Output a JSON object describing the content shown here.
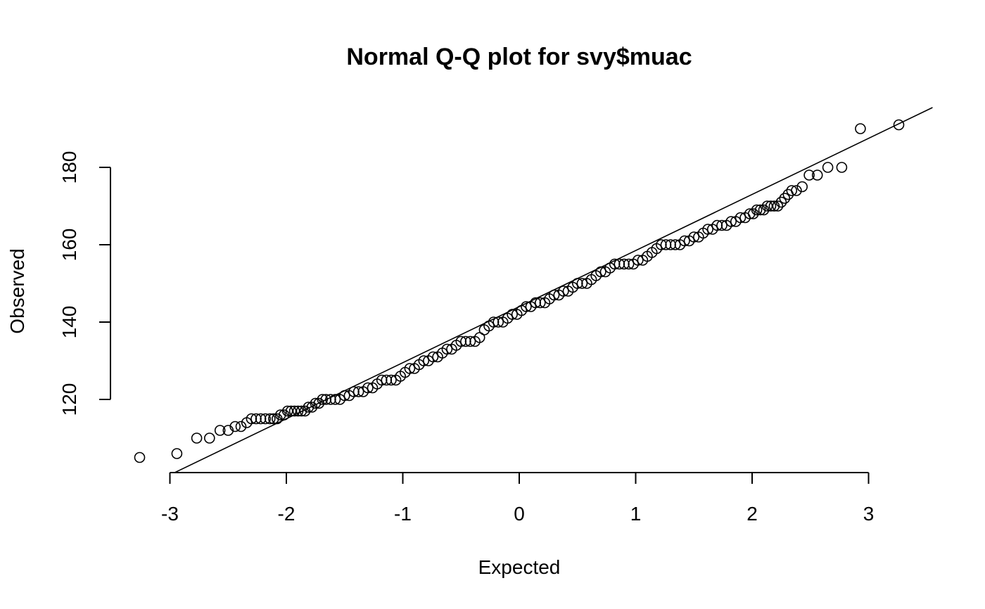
{
  "chart_data": {
    "type": "scatter",
    "title": "Normal Q-Q plot for svy$muac",
    "xlabel": "Expected",
    "ylabel": "Observed",
    "xlim": [
      -3.3,
      3.55
    ],
    "ylim": [
      101,
      196
    ],
    "x_ticks": [
      "-3",
      "-2",
      "-1",
      "0",
      "1",
      "2",
      "3"
    ],
    "y_ticks": [
      "120",
      "140",
      "160",
      "180"
    ],
    "grid": false,
    "reference_line": {
      "intercept": 144.0,
      "slope": 14.5
    },
    "series": [
      {
        "points": [
          [
            -3.26,
            105
          ],
          [
            -2.94,
            106
          ],
          [
            -2.77,
            110
          ],
          [
            -2.66,
            110
          ],
          [
            -2.57,
            112
          ],
          [
            -2.5,
            112
          ],
          [
            -2.44,
            113
          ],
          [
            -2.39,
            113
          ],
          [
            -2.34,
            114
          ],
          [
            -2.3,
            115
          ],
          [
            -2.26,
            115
          ],
          [
            -2.22,
            115
          ],
          [
            -2.18,
            115
          ],
          [
            -2.14,
            115
          ],
          [
            -2.11,
            115
          ],
          [
            -2.08,
            115
          ],
          [
            -2.05,
            116
          ],
          [
            -2.02,
            116
          ],
          [
            -1.99,
            117
          ],
          [
            -1.96,
            117
          ],
          [
            -1.93,
            117
          ],
          [
            -1.9,
            117
          ],
          [
            -1.87,
            117
          ],
          [
            -1.84,
            117
          ],
          [
            -1.81,
            118
          ],
          [
            -1.78,
            118
          ],
          [
            -1.75,
            119
          ],
          [
            -1.72,
            119
          ],
          [
            -1.69,
            120
          ],
          [
            -1.66,
            120
          ],
          [
            -1.62,
            120
          ],
          [
            -1.58,
            120
          ],
          [
            -1.54,
            120
          ],
          [
            -1.5,
            121
          ],
          [
            -1.46,
            121
          ],
          [
            -1.42,
            122
          ],
          [
            -1.38,
            122
          ],
          [
            -1.34,
            122
          ],
          [
            -1.3,
            123
          ],
          [
            -1.26,
            123
          ],
          [
            -1.22,
            124
          ],
          [
            -1.18,
            125
          ],
          [
            -1.14,
            125
          ],
          [
            -1.1,
            125
          ],
          [
            -1.06,
            125
          ],
          [
            -1.02,
            126
          ],
          [
            -0.98,
            127
          ],
          [
            -0.94,
            128
          ],
          [
            -0.9,
            128
          ],
          [
            -0.86,
            129
          ],
          [
            -0.82,
            130
          ],
          [
            -0.78,
            130
          ],
          [
            -0.74,
            131
          ],
          [
            -0.7,
            131
          ],
          [
            -0.66,
            132
          ],
          [
            -0.62,
            133
          ],
          [
            -0.58,
            133
          ],
          [
            -0.54,
            134
          ],
          [
            -0.5,
            135
          ],
          [
            -0.46,
            135
          ],
          [
            -0.42,
            135
          ],
          [
            -0.38,
            135
          ],
          [
            -0.34,
            136
          ],
          [
            -0.3,
            138
          ],
          [
            -0.26,
            139
          ],
          [
            -0.22,
            140
          ],
          [
            -0.18,
            140
          ],
          [
            -0.14,
            140
          ],
          [
            -0.1,
            141
          ],
          [
            -0.06,
            142
          ],
          [
            -0.02,
            142
          ],
          [
            0.02,
            143
          ],
          [
            0.06,
            144
          ],
          [
            0.1,
            144
          ],
          [
            0.14,
            145
          ],
          [
            0.18,
            145
          ],
          [
            0.22,
            145
          ],
          [
            0.26,
            146
          ],
          [
            0.3,
            147
          ],
          [
            0.34,
            147
          ],
          [
            0.38,
            148
          ],
          [
            0.42,
            148
          ],
          [
            0.46,
            149
          ],
          [
            0.5,
            150
          ],
          [
            0.54,
            150
          ],
          [
            0.58,
            150
          ],
          [
            0.62,
            151
          ],
          [
            0.66,
            152
          ],
          [
            0.7,
            153
          ],
          [
            0.74,
            153
          ],
          [
            0.78,
            154
          ],
          [
            0.82,
            155
          ],
          [
            0.86,
            155
          ],
          [
            0.9,
            155
          ],
          [
            0.94,
            155
          ],
          [
            0.98,
            155
          ],
          [
            1.02,
            156
          ],
          [
            1.06,
            156
          ],
          [
            1.1,
            157
          ],
          [
            1.14,
            158
          ],
          [
            1.18,
            159
          ],
          [
            1.22,
            160
          ],
          [
            1.26,
            160
          ],
          [
            1.3,
            160
          ],
          [
            1.34,
            160
          ],
          [
            1.38,
            160
          ],
          [
            1.42,
            161
          ],
          [
            1.46,
            161
          ],
          [
            1.5,
            162
          ],
          [
            1.54,
            162
          ],
          [
            1.58,
            163
          ],
          [
            1.62,
            164
          ],
          [
            1.66,
            164
          ],
          [
            1.7,
            165
          ],
          [
            1.74,
            165
          ],
          [
            1.78,
            165
          ],
          [
            1.82,
            166
          ],
          [
            1.86,
            166
          ],
          [
            1.9,
            167
          ],
          [
            1.94,
            167
          ],
          [
            1.98,
            168
          ],
          [
            2.01,
            168
          ],
          [
            2.04,
            169
          ],
          [
            2.07,
            169
          ],
          [
            2.1,
            169
          ],
          [
            2.13,
            170
          ],
          [
            2.16,
            170
          ],
          [
            2.19,
            170
          ],
          [
            2.22,
            170
          ],
          [
            2.25,
            171
          ],
          [
            2.28,
            172
          ],
          [
            2.31,
            173
          ],
          [
            2.34,
            174
          ],
          [
            2.38,
            174
          ],
          [
            2.43,
            175
          ],
          [
            2.49,
            178
          ],
          [
            2.56,
            178
          ],
          [
            2.65,
            180
          ],
          [
            2.77,
            180
          ],
          [
            2.93,
            190
          ],
          [
            3.26,
            191
          ]
        ]
      }
    ]
  }
}
